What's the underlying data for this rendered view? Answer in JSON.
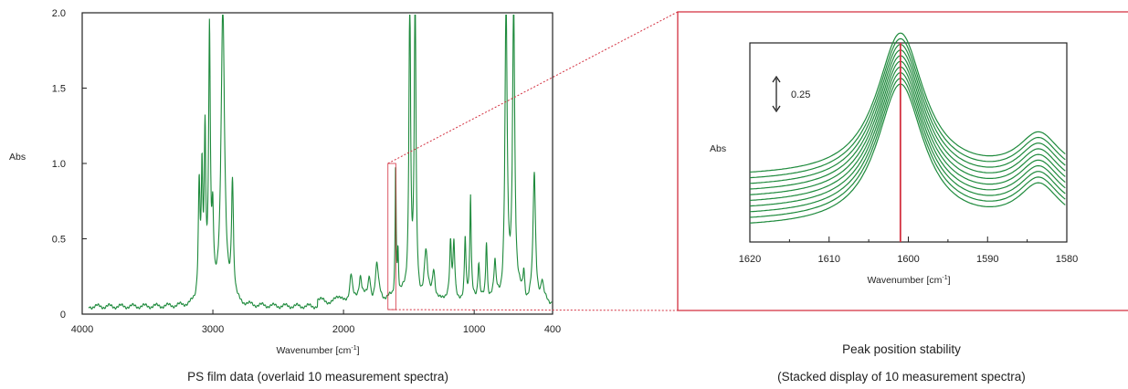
{
  "chart_data": [
    {
      "type": "line",
      "xlabel": "Wavenumber [cm",
      "xlabel_sup": "-1",
      "xlabel_end": "]",
      "ylabel": "Abs",
      "xlim": [
        4000,
        400
      ],
      "ylim": [
        0,
        2.0
      ],
      "x_ticks": [
        4000,
        3000,
        2000,
        1000,
        400
      ],
      "x_tick_labels": [
        "4000",
        "3000",
        "2000",
        "1000",
        "400"
      ],
      "y_ticks": [
        0,
        0.5,
        1.0,
        1.5,
        2.0
      ],
      "y_tick_labels": [
        "0",
        "0.5",
        "1.0",
        "1.5",
        "2.0"
      ],
      "caption": "PS film data (overlaid 10 measurement spectra)",
      "series_color": "#1e8a3c",
      "baseline": 0.05,
      "peaks": [
        [
          3105,
          0.75,
          8
        ],
        [
          3083,
          0.78,
          7
        ],
        [
          3060,
          1.05,
          7
        ],
        [
          3026,
          1.76,
          8
        ],
        [
          3001,
          0.48,
          8
        ],
        [
          2924,
          1.98,
          16
        ],
        [
          2850,
          0.78,
          9
        ],
        [
          1942,
          0.18,
          12
        ],
        [
          1871,
          0.14,
          12
        ],
        [
          1802,
          0.16,
          12
        ],
        [
          1745,
          0.22,
          14
        ],
        [
          1601,
          0.91,
          5
        ],
        [
          1583,
          0.3,
          5
        ],
        [
          1493,
          1.98,
          8
        ],
        [
          1452,
          1.98,
          8
        ],
        [
          1370,
          0.28,
          14
        ],
        [
          1310,
          0.2,
          12
        ],
        [
          1181,
          0.35,
          8
        ],
        [
          1155,
          0.36,
          8
        ],
        [
          1069,
          0.42,
          7
        ],
        [
          1028,
          0.66,
          6
        ],
        [
          965,
          0.24,
          8
        ],
        [
          906,
          0.38,
          7
        ],
        [
          841,
          0.2,
          8
        ],
        [
          756,
          1.98,
          10
        ],
        [
          698,
          1.98,
          10
        ],
        [
          620,
          0.18,
          8
        ],
        [
          540,
          0.82,
          11
        ],
        [
          480,
          0.1,
          10
        ]
      ],
      "inset_box": {
        "x": [
          1660,
          1600
        ],
        "y": [
          0.03,
          1.0
        ],
        "color": "#d32f3f"
      }
    },
    {
      "type": "line",
      "xlabel": "Wavenumber [cm",
      "xlabel_sup": "-1",
      "xlabel_end": "]",
      "ylabel": "Abs",
      "xlim": [
        1620,
        1580
      ],
      "x_ticks": [
        1620,
        1610,
        1600,
        1590,
        1580
      ],
      "x_tick_labels": [
        "1620",
        "1610",
        "1600",
        "1590",
        "1580"
      ],
      "scale_bar_label": "0.25",
      "scale_bar_value": 0.25,
      "peak_marker": 1601,
      "caption_line1": "Peak position stability",
      "caption_line2": "(Stacked display of 10 measurement spectra)",
      "series_count": 10,
      "series_color": "#1e8a3c",
      "marker_color": "#d32f3f",
      "peaks": [
        [
          1601,
          0.72,
          3.6
        ],
        [
          1583.5,
          0.2,
          3.2
        ]
      ],
      "baseline": 0.18,
      "stack_offset": 0.03
    }
  ]
}
